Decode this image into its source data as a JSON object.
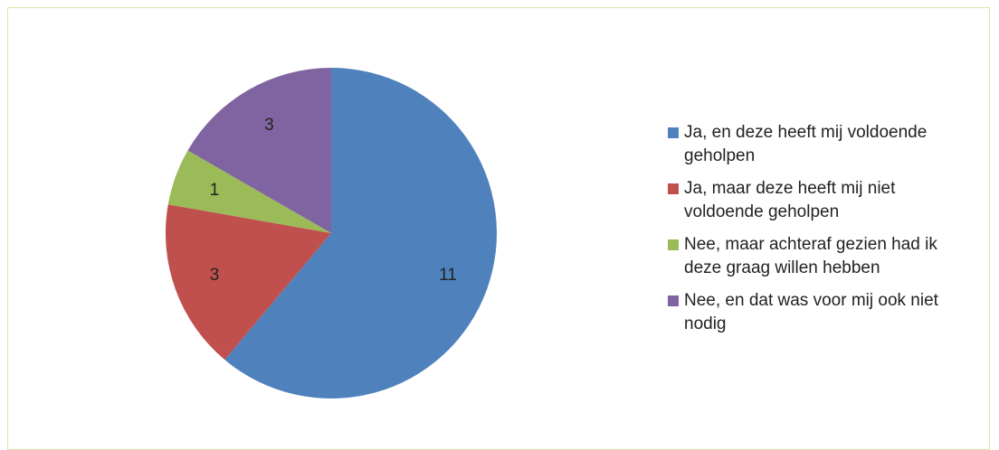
{
  "chart_data": {
    "type": "pie",
    "categories": [
      "Ja, en deze heeft mij voldoende geholpen",
      "Ja, maar deze heeft mij niet voldoende geholpen",
      "Nee, maar achteraf gezien had ik deze graag willen hebben",
      "Nee, en dat was voor mij ook niet nodig"
    ],
    "values": [
      11,
      3,
      1,
      3
    ],
    "colors": [
      "#4f81bd",
      "#c0504d",
      "#9bbb59",
      "#8064a2"
    ],
    "legend": "right"
  }
}
